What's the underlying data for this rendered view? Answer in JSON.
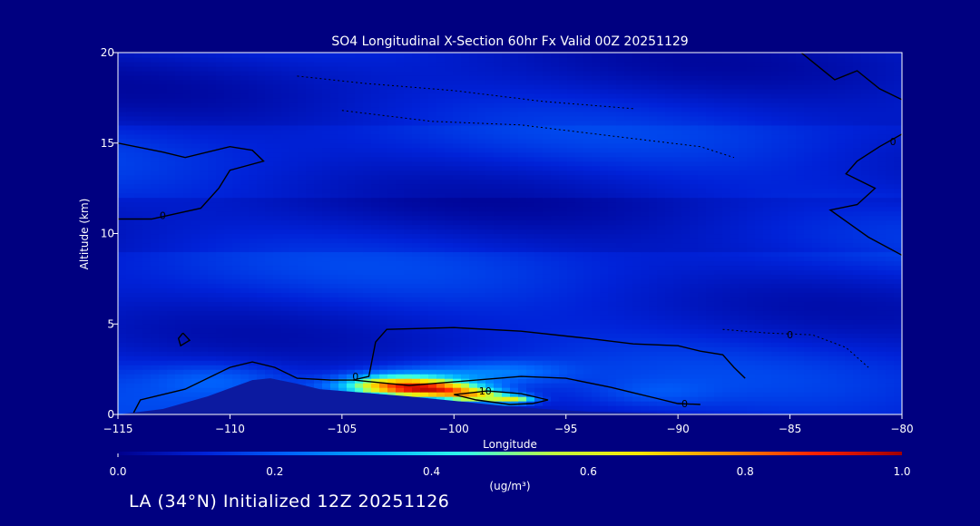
{
  "footer": {
    "text": "LA (34°N) Initialized 12Z 20251126"
  },
  "chart_data": {
    "type": "heatmap",
    "title": "SO4 Longitudinal X-Section 60hr  Fx Valid 00Z 20251129",
    "xlabel": "Longitude",
    "ylabel": "Altitude (km)",
    "xlim": [
      -115,
      -80
    ],
    "ylim": [
      0,
      20
    ],
    "x_ticks": [
      -115,
      -110,
      -105,
      -100,
      -95,
      -90,
      -85,
      -80
    ],
    "x_tick_labels": [
      "−115",
      "−110",
      "−105",
      "−100",
      "−95",
      "−90",
      "−85",
      "−80"
    ],
    "y_ticks": [
      0,
      5,
      10,
      15,
      20
    ],
    "y_tick_labels": [
      "0",
      "5",
      "10",
      "15",
      "20"
    ],
    "colorbar": {
      "min": 0.0,
      "max": 1.0,
      "ticks": [
        0.0,
        0.2,
        0.4,
        0.6,
        0.8,
        1.0
      ],
      "tick_labels": [
        "0.0",
        "0.2",
        "0.4",
        "0.6",
        "0.8",
        "1.0"
      ],
      "unit_label": "(ug/m³)",
      "colors": [
        "#00008c",
        "#0022d8",
        "#0066ff",
        "#00b4ff",
        "#33ffe8",
        "#bfff40",
        "#ffe600",
        "#ff8c00",
        "#ff2000",
        "#a00000"
      ]
    },
    "contour_labels": [
      {
        "text": "0",
        "lon": -104.4,
        "alt": 2.1
      },
      {
        "text": "10",
        "lon": -98.6,
        "alt": 1.3
      },
      {
        "text": "0",
        "lon": -89.7,
        "alt": 0.6
      },
      {
        "text": "0",
        "lon": -85.0,
        "alt": 4.4
      },
      {
        "text": "0",
        "lon": -80.4,
        "alt": 15.1
      },
      {
        "text": "0",
        "lon": -113.0,
        "alt": 11.0
      }
    ],
    "terrain": [
      [
        -115,
        0.0
      ],
      [
        -113,
        0.3
      ],
      [
        -111,
        1.0
      ],
      [
        -109,
        1.9
      ],
      [
        -108.2,
        2.0
      ],
      [
        -107,
        1.7
      ],
      [
        -106,
        1.4
      ],
      [
        -105,
        1.3
      ],
      [
        -104,
        1.2
      ],
      [
        -102,
        1.0
      ],
      [
        -100,
        0.75
      ],
      [
        -98,
        0.5
      ],
      [
        -96,
        0.3
      ],
      [
        -94,
        0.15
      ],
      [
        -90,
        0.05
      ],
      [
        -80,
        0.0
      ]
    ],
    "plumes": [
      {
        "lon": -102.5,
        "alt": 1.6,
        "sx": 2.4,
        "sy": 0.55,
        "value": 0.62
      },
      {
        "lon": -100.5,
        "alt": 1.35,
        "sx": 2.0,
        "sy": 0.4,
        "value": 0.45
      },
      {
        "lon": -99.0,
        "alt": 1.0,
        "sx": 1.5,
        "sy": 0.35,
        "value": 0.42
      },
      {
        "lon": -97.3,
        "alt": 0.85,
        "sx": 0.9,
        "sy": 0.22,
        "value": 0.4
      },
      {
        "lon": -101.0,
        "alt": 2.1,
        "sx": 3.2,
        "sy": 0.8,
        "value": 0.12
      },
      {
        "lon": -97.5,
        "alt": 2.4,
        "sx": 2.6,
        "sy": 0.6,
        "value": 0.1
      },
      {
        "lon": -110.5,
        "alt": 2.0,
        "sx": 3.0,
        "sy": 0.9,
        "value": 0.08
      },
      {
        "lon": -91.0,
        "alt": 1.2,
        "sx": 2.5,
        "sy": 0.7,
        "value": 0.05
      }
    ]
  }
}
